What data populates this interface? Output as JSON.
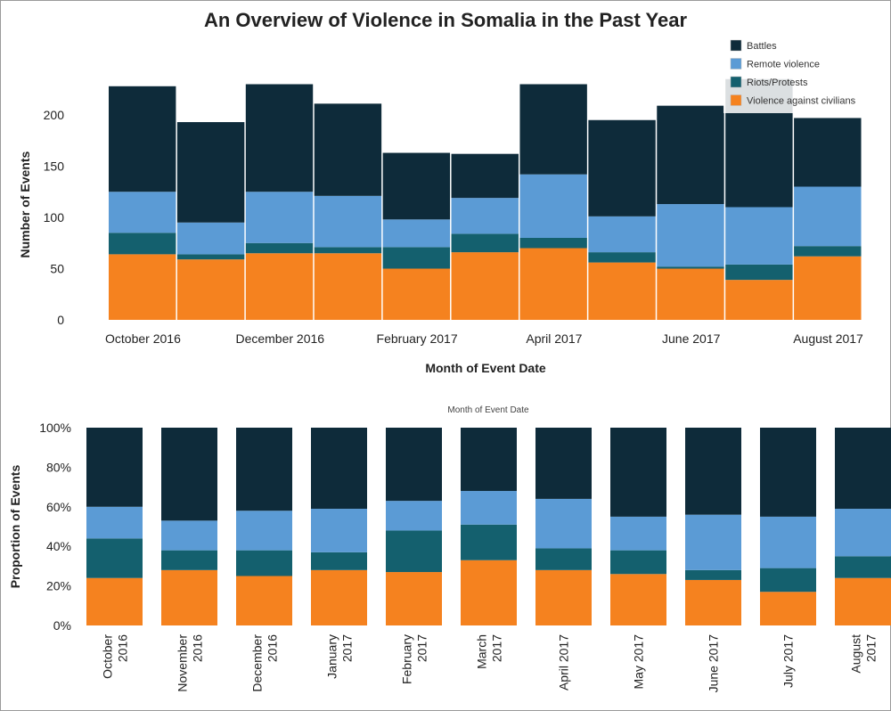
{
  "chart_data": [
    {
      "type": "bar",
      "stacked": true,
      "title": "An Overview of Violence in Somalia in the Past Year",
      "xlabel": "Month of Event Date",
      "ylabel": "Number of Events",
      "ylim": [
        0,
        235
      ],
      "yticks": [
        0,
        50,
        100,
        150,
        200
      ],
      "categories": [
        "October 2016",
        "November 2016",
        "December 2016",
        "January 2017",
        "February 2017",
        "March 2017",
        "April 2017",
        "May 2017",
        "June 2017",
        "July 2017",
        "August 2017"
      ],
      "xtick_labels": [
        "October 2016",
        "",
        "December 2016",
        "",
        "February 2017",
        "",
        "April 2017",
        "",
        "June 2017",
        "",
        "August 2017"
      ],
      "legend": {
        "placement": "top-right",
        "entries": [
          "Battles",
          "Remote violence",
          "Riots/Protests",
          "Violence against civilians"
        ]
      },
      "series": [
        {
          "name": "Violence against civilians",
          "color": "#f5821f",
          "values": [
            64,
            59,
            65,
            65,
            50,
            66,
            70,
            56,
            50,
            39,
            62
          ]
        },
        {
          "name": "Riots/Protests",
          "color": "#14606e",
          "values": [
            21,
            5,
            10,
            6,
            21,
            18,
            10,
            10,
            2,
            15,
            10
          ]
        },
        {
          "name": "Remote violence",
          "color": "#5b9bd5",
          "values": [
            40,
            31,
            50,
            50,
            27,
            35,
            62,
            35,
            61,
            56,
            58
          ]
        },
        {
          "name": "Battles",
          "color": "#0e2b3a",
          "values": [
            103,
            98,
            105,
            90,
            65,
            43,
            88,
            94,
            96,
            125,
            67
          ]
        }
      ]
    },
    {
      "type": "bar",
      "stacked": true,
      "normalized": true,
      "title": "Month of Event Date",
      "xlabel": "",
      "ylabel": "Proportion of Events",
      "ylim": [
        0,
        100
      ],
      "yticks": [
        "0%",
        "20%",
        "40%",
        "60%",
        "80%",
        "100%"
      ],
      "categories": [
        "October\n2016",
        "November\n2016",
        "December\n2016",
        "January\n2017",
        "February\n2017",
        "March\n2017",
        "April 2017",
        "May 2017",
        "June 2017",
        "July 2017",
        "August\n2017"
      ],
      "series": [
        {
          "name": "Violence against civilians",
          "color": "#f5821f",
          "values": [
            24,
            28,
            25,
            28,
            27,
            33,
            28,
            26,
            23,
            17,
            24
          ]
        },
        {
          "name": "Riots/Protests",
          "color": "#14606e",
          "values": [
            20,
            10,
            13,
            9,
            21,
            18,
            11,
            12,
            5,
            12,
            11
          ]
        },
        {
          "name": "Remote violence",
          "color": "#5b9bd5",
          "values": [
            16,
            15,
            20,
            22,
            15,
            17,
            25,
            17,
            28,
            26,
            24
          ]
        },
        {
          "name": "Battles",
          "color": "#0e2b3a",
          "values": [
            40,
            47,
            42,
            41,
            37,
            32,
            36,
            45,
            44,
            45,
            41
          ]
        }
      ]
    }
  ]
}
